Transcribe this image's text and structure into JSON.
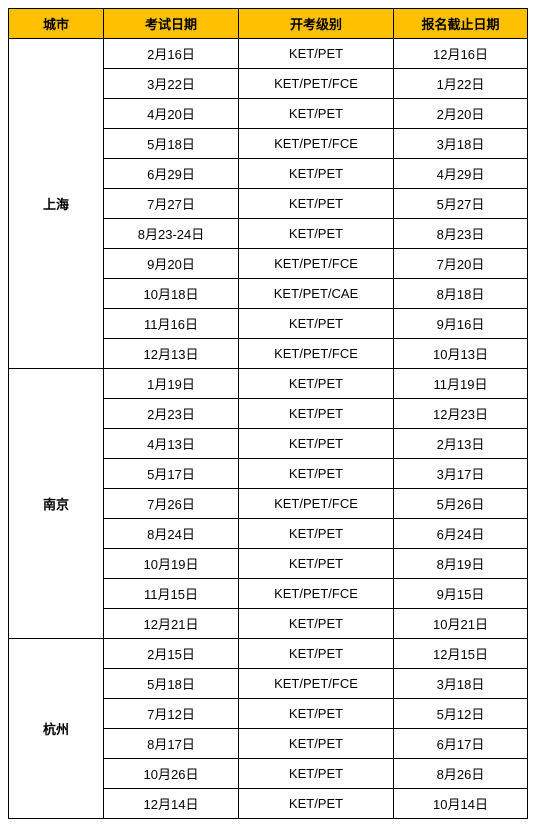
{
  "headers": {
    "city": "城市",
    "exam_date": "考试日期",
    "level": "开考级别",
    "deadline": "报名截止日期"
  },
  "groups": [
    {
      "city": "上海",
      "rows": [
        {
          "exam_date": "2月16日",
          "level": "KET/PET",
          "deadline": "12月16日"
        },
        {
          "exam_date": "3月22日",
          "level": "KET/PET/FCE",
          "deadline": "1月22日"
        },
        {
          "exam_date": "4月20日",
          "level": "KET/PET",
          "deadline": "2月20日"
        },
        {
          "exam_date": "5月18日",
          "level": "KET/PET/FCE",
          "deadline": "3月18日"
        },
        {
          "exam_date": "6月29日",
          "level": "KET/PET",
          "deadline": "4月29日"
        },
        {
          "exam_date": "7月27日",
          "level": "KET/PET",
          "deadline": "5月27日"
        },
        {
          "exam_date": "8月23-24日",
          "level": "KET/PET",
          "deadline": "8月23日"
        },
        {
          "exam_date": "9月20日",
          "level": "KET/PET/FCE",
          "deadline": "7月20日"
        },
        {
          "exam_date": "10月18日",
          "level": "KET/PET/CAE",
          "deadline": "8月18日"
        },
        {
          "exam_date": "11月16日",
          "level": "KET/PET",
          "deadline": "9月16日"
        },
        {
          "exam_date": "12月13日",
          "level": "KET/PET/FCE",
          "deadline": "10月13日"
        }
      ]
    },
    {
      "city": "南京",
      "rows": [
        {
          "exam_date": "1月19日",
          "level": "KET/PET",
          "deadline": "11月19日"
        },
        {
          "exam_date": "2月23日",
          "level": "KET/PET",
          "deadline": "12月23日"
        },
        {
          "exam_date": "4月13日",
          "level": "KET/PET",
          "deadline": "2月13日"
        },
        {
          "exam_date": "5月17日",
          "level": "KET/PET",
          "deadline": "3月17日"
        },
        {
          "exam_date": "7月26日",
          "level": "KET/PET/FCE",
          "deadline": "5月26日"
        },
        {
          "exam_date": "8月24日",
          "level": "KET/PET",
          "deadline": "6月24日"
        },
        {
          "exam_date": "10月19日",
          "level": "KET/PET",
          "deadline": "8月19日"
        },
        {
          "exam_date": "11月15日",
          "level": "KET/PET/FCE",
          "deadline": "9月15日"
        },
        {
          "exam_date": "12月21日",
          "level": "KET/PET",
          "deadline": "10月21日"
        }
      ]
    },
    {
      "city": "杭州",
      "rows": [
        {
          "exam_date": "2月15日",
          "level": "KET/PET",
          "deadline": "12月15日"
        },
        {
          "exam_date": "5月18日",
          "level": "KET/PET/FCE",
          "deadline": "3月18日"
        },
        {
          "exam_date": "7月12日",
          "level": "KET/PET",
          "deadline": "5月12日"
        },
        {
          "exam_date": "8月17日",
          "level": "KET/PET",
          "deadline": "6月17日"
        },
        {
          "exam_date": "10月26日",
          "level": "KET/PET",
          "deadline": "8月26日"
        },
        {
          "exam_date": "12月14日",
          "level": "KET/PET",
          "deadline": "10月14日"
        }
      ]
    }
  ]
}
